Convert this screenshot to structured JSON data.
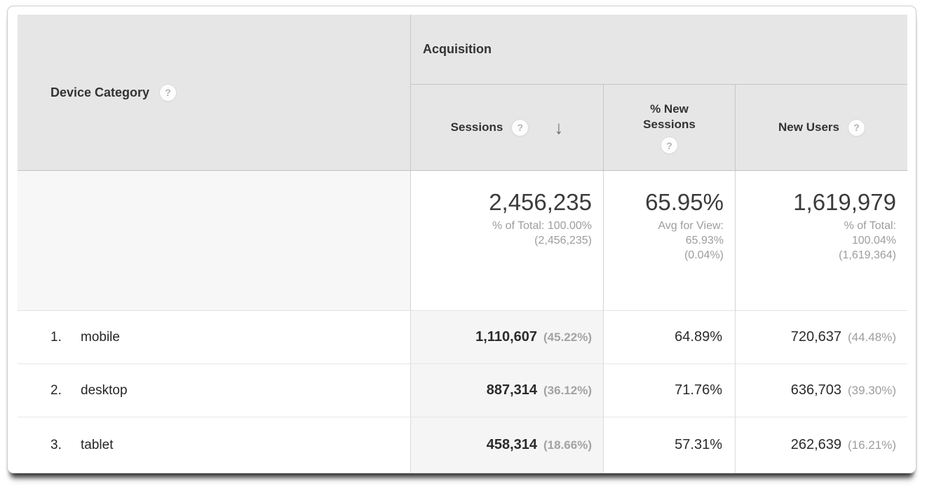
{
  "table": {
    "dimension_column": {
      "header": "Device Category",
      "help": "?"
    },
    "group_header": "Acquisition",
    "metric_columns": [
      {
        "label": "Sessions",
        "help": "?",
        "sorted": "descending",
        "sort_arrow": "↓"
      },
      {
        "label": "% New Sessions",
        "help": "?"
      },
      {
        "label": "New Users",
        "help": "?"
      }
    ],
    "summary_row": {
      "sessions": {
        "value": "2,456,235",
        "line1": "% of Total: 100.00%",
        "line2": "(2,456,235)"
      },
      "pct_new_sessions": {
        "value": "65.95%",
        "line1": "Avg for View:",
        "line2": "65.93%",
        "line3": "(0.04%)"
      },
      "new_users": {
        "value": "1,619,979",
        "line1": "% of Total:",
        "line2": "100.04%",
        "line3": "(1,619,364)"
      }
    },
    "rows": [
      {
        "rank": "1.",
        "device": "mobile",
        "sessions": "1,110,607",
        "sessions_share": "(45.22%)",
        "pct_new_sessions": "64.89%",
        "new_users": "720,637",
        "new_users_share": "(44.48%)"
      },
      {
        "rank": "2.",
        "device": "desktop",
        "sessions": "887,314",
        "sessions_share": "(36.12%)",
        "pct_new_sessions": "71.76%",
        "new_users": "636,703",
        "new_users_share": "(39.30%)"
      },
      {
        "rank": "3.",
        "device": "tablet",
        "sessions": "458,314",
        "sessions_share": "(18.66%)",
        "pct_new_sessions": "57.31%",
        "new_users": "262,639",
        "new_users_share": "(16.21%)"
      }
    ]
  },
  "colors": {
    "header_bg": "#e6e6e6",
    "sorted_column_bg": "#f5f5f5",
    "summary_dimension_bg": "#f7f7f7",
    "primary_text": "#2b2b2b",
    "muted_text": "#9d9d9d",
    "header_border": "#c6c6c6",
    "row_border": "#e6e6e6"
  }
}
